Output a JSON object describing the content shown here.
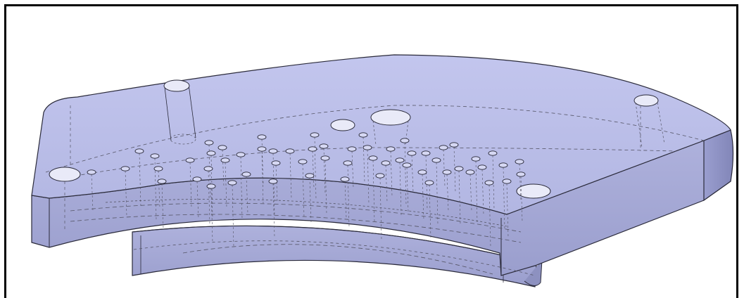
{
  "figure": {
    "kind": "cad-wireframe-render",
    "subject": "curved-plate-with-holes",
    "colors": {
      "face_top": "#b9bde6",
      "face_side": "#a2a6d3",
      "face_side_dark": "#8d91c0",
      "edge": "#2a2a3a",
      "hidden_line": "#555566",
      "frame": "#000000",
      "background": "#ffffff"
    },
    "features": {
      "large_through_holes": 6,
      "small_hole_clusters": "many",
      "hidden_lines_shown": true
    }
  }
}
